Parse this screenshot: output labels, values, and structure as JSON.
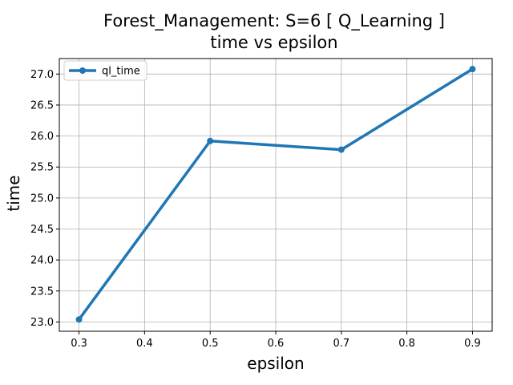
{
  "chart_data": {
    "type": "line",
    "title": "Forest_Management: S=6 [ Q_Learning ]",
    "subtitle": "time vs epsilon",
    "xlabel": "epsilon",
    "ylabel": "time",
    "xlim": [
      0.27,
      0.93
    ],
    "ylim": [
      22.85,
      27.25
    ],
    "xticks": [
      "0.3",
      "0.4",
      "0.5",
      "0.6",
      "0.7",
      "0.8",
      "0.9"
    ],
    "yticks": [
      "23.0",
      "23.5",
      "24.0",
      "24.5",
      "25.0",
      "25.5",
      "26.0",
      "26.5",
      "27.0"
    ],
    "grid": true,
    "legend_position": "top-left",
    "series": [
      {
        "name": "ql_time",
        "color": "#1f77b4",
        "x": [
          0.3,
          0.5,
          0.7,
          0.9
        ],
        "y": [
          23.04,
          25.92,
          25.78,
          27.08
        ]
      }
    ]
  }
}
